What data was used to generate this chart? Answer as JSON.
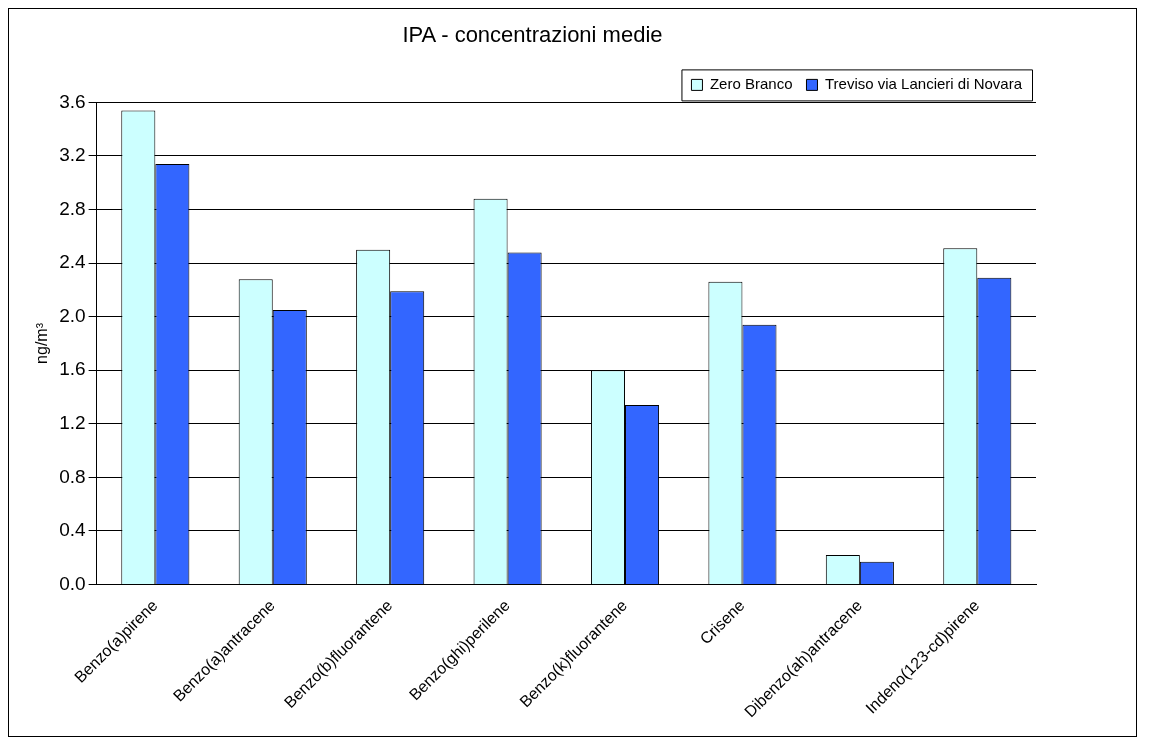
{
  "chart_data": {
    "type": "bar",
    "title": "IPA - concentrazioni medie",
    "ylabel": "ng/m³",
    "categories": [
      "Benzo(a)pirene",
      "Benzo(a)antracene",
      "Benzo(b)fluorantene",
      "Benzo(ghi)perilene",
      "Benzo(k)fluorantene",
      "Crisene",
      "Dibenzo(ah)antracene",
      "Indeno(123-cd)pirene"
    ],
    "series": [
      {
        "name": "Zero Branco",
        "color": "#ccffff",
        "values": [
          3.54,
          2.28,
          2.5,
          2.88,
          1.6,
          2.26,
          0.22,
          2.51
        ]
      },
      {
        "name": "Treviso via Lancieri di Novara",
        "color": "#3366ff",
        "values": [
          3.14,
          2.05,
          2.19,
          2.48,
          1.34,
          1.94,
          0.17,
          2.29
        ]
      }
    ],
    "ylim": [
      0,
      3.6
    ],
    "yticks": [
      {
        "value": 0,
        "label": "0.0"
      },
      {
        "value": 0.4,
        "label": "0.4"
      },
      {
        "value": 0.8,
        "label": "0.8"
      },
      {
        "value": 1.2,
        "label": "1.2"
      },
      {
        "value": 1.6,
        "label": "1.6"
      },
      {
        "value": 2,
        "label": "2.0"
      },
      {
        "value": 2.4,
        "label": "2.4"
      },
      {
        "value": 2.8,
        "label": "2.8"
      },
      {
        "value": 3.2,
        "label": "3.2"
      },
      {
        "value": 3.6,
        "label": "3.6"
      }
    ],
    "grid": "y",
    "legend": "top right"
  }
}
